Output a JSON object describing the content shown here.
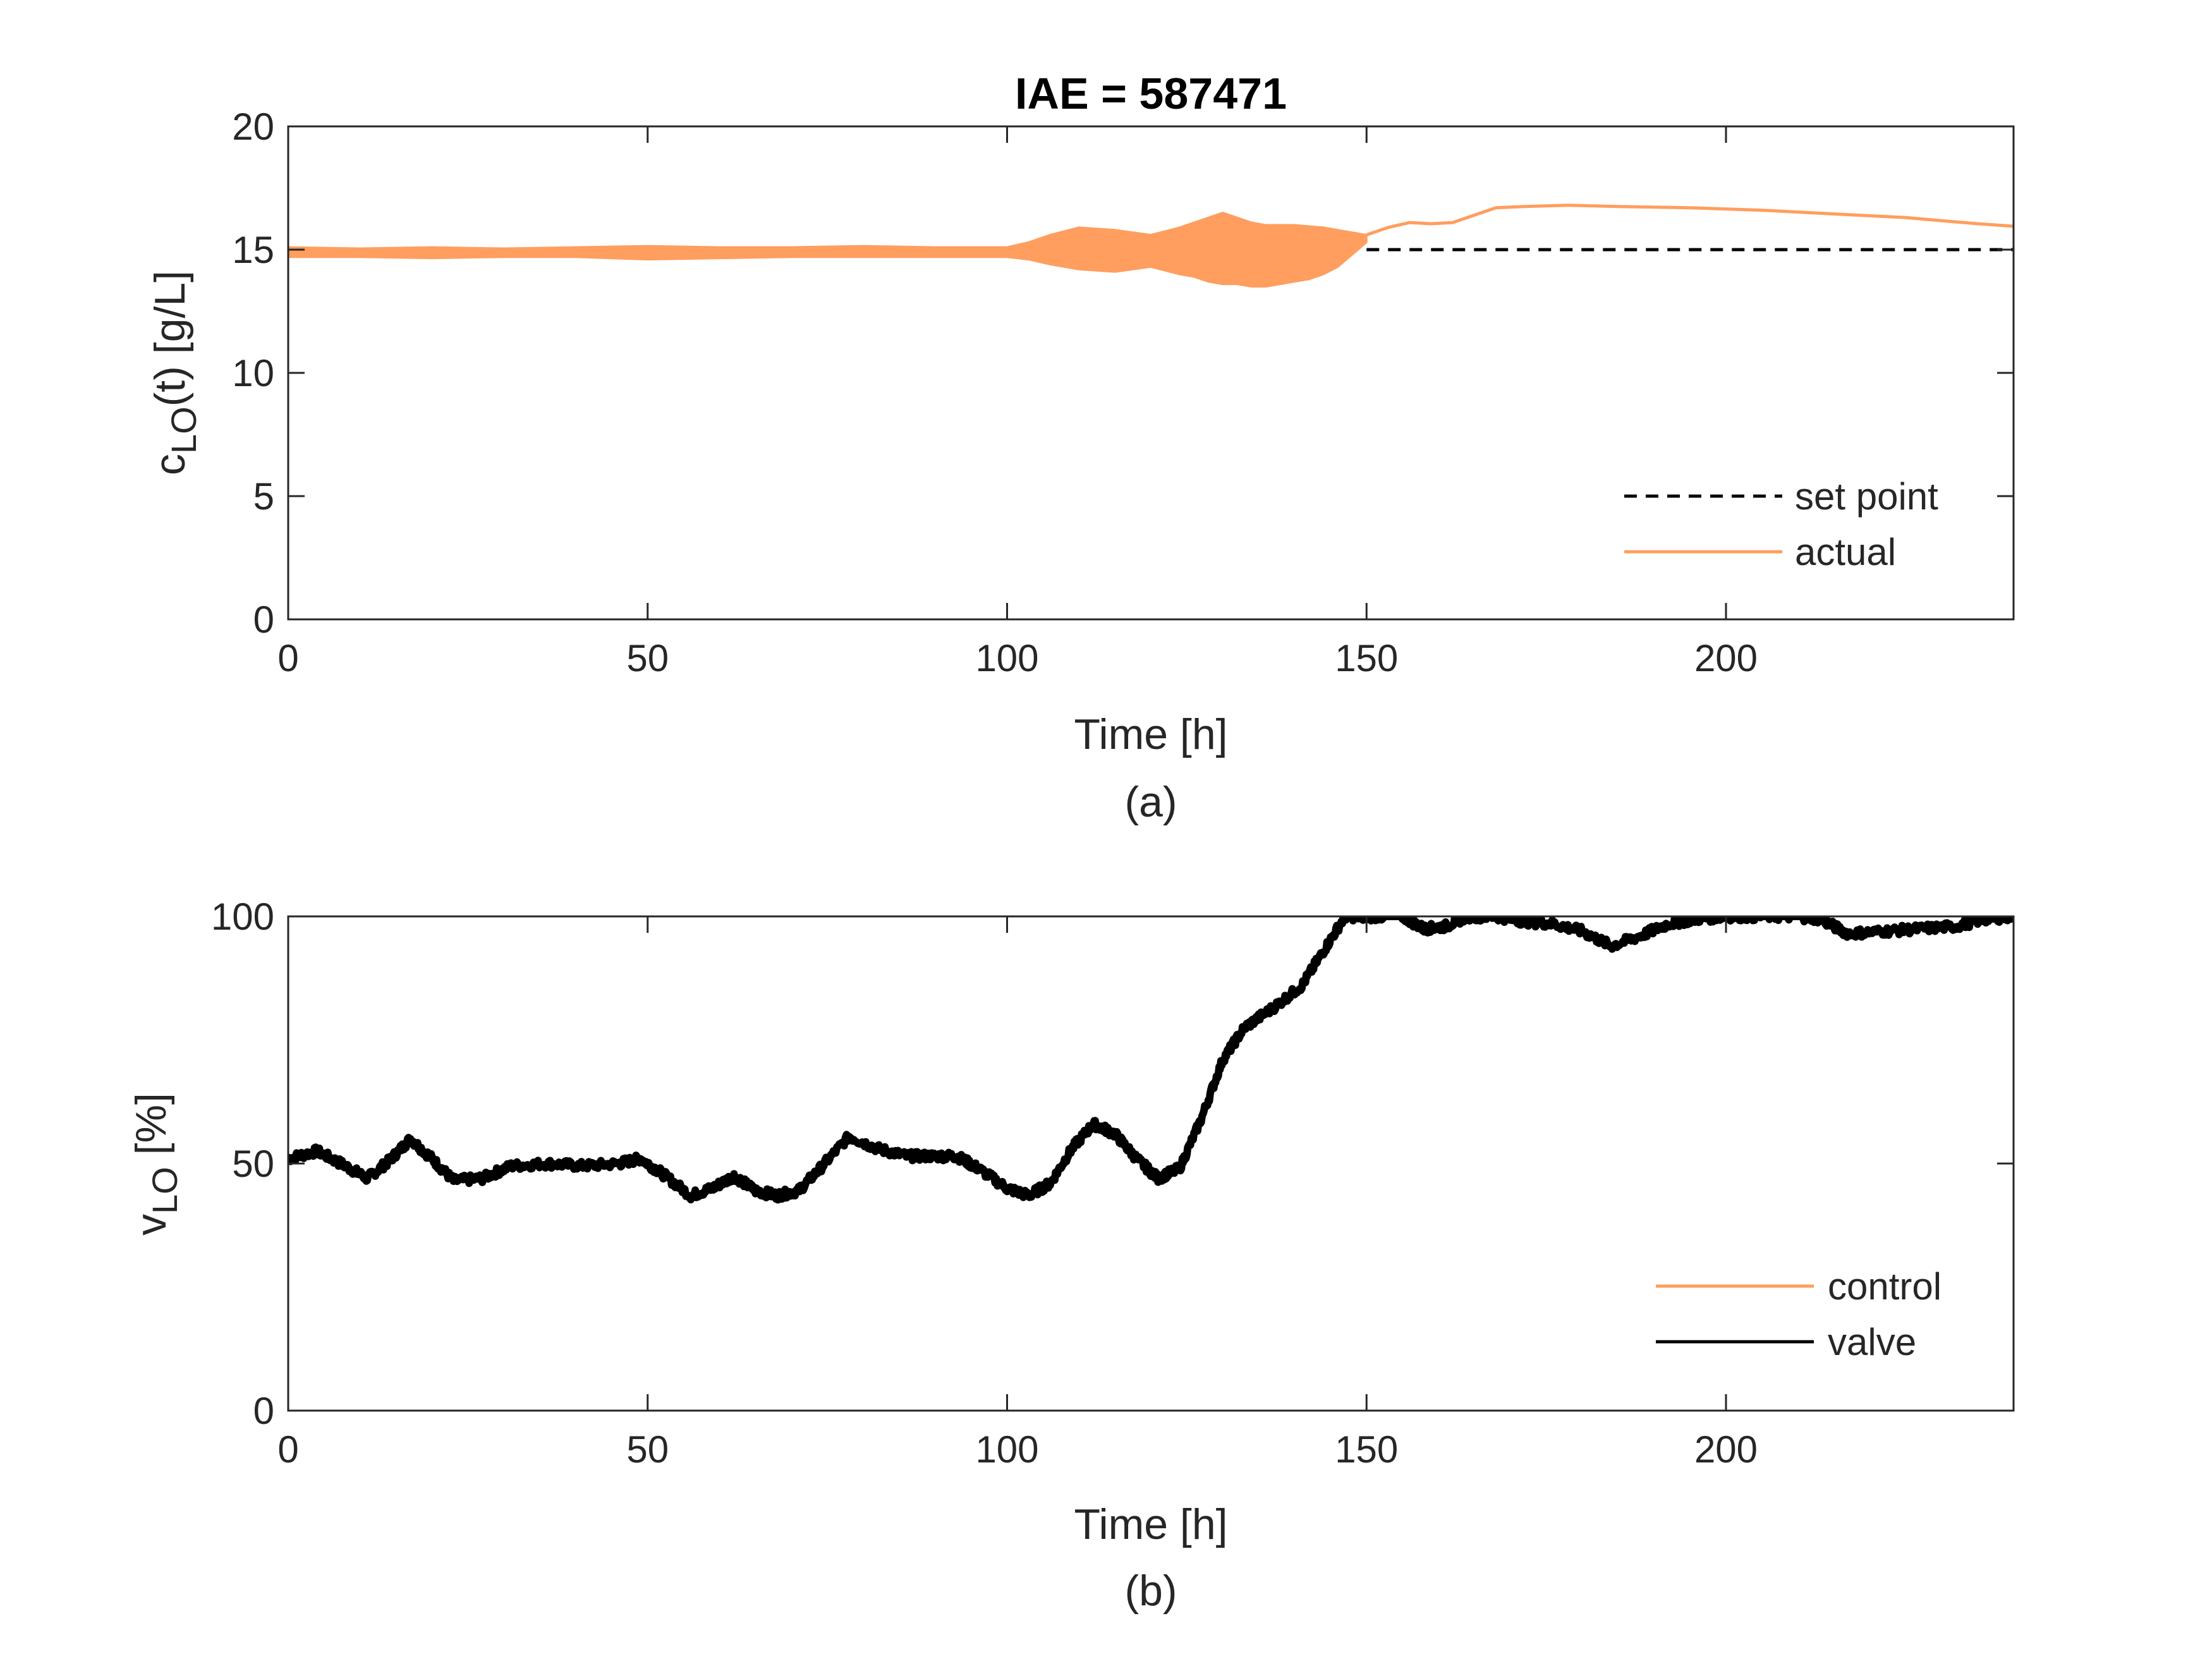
{
  "chart_data": [
    {
      "type": "line",
      "title": "IAE = 587471",
      "xlabel": "Time [h]",
      "ylabel_main": "c",
      "ylabel_sub": "LO",
      "ylabel_rest": "(t) [g/L]",
      "panel_label": "(a)",
      "xlim": [
        0,
        240
      ],
      "ylim": [
        0,
        20
      ],
      "xticks": [
        0,
        50,
        100,
        150,
        200
      ],
      "yticks": [
        0,
        5,
        10,
        15,
        20
      ],
      "legend_position": "bottom-right",
      "series": [
        {
          "name": "set point",
          "color": "#000000",
          "style": "dashed",
          "x": [
            150,
            240
          ],
          "y": [
            15,
            15
          ]
        },
        {
          "name": "actual",
          "color": "#FF9E5E",
          "style": "solid",
          "band_x": [
            0,
            10,
            20,
            30,
            40,
            50,
            60,
            70,
            80,
            90,
            100,
            103,
            106,
            110,
            115,
            120,
            124,
            126,
            128,
            130,
            132,
            134,
            136,
            138,
            140,
            142,
            144,
            146,
            148,
            150
          ],
          "band_low": [
            14.7,
            14.7,
            14.65,
            14.7,
            14.7,
            14.6,
            14.65,
            14.7,
            14.7,
            14.7,
            14.7,
            14.6,
            14.4,
            14.2,
            14.1,
            14.3,
            14.0,
            13.9,
            13.7,
            13.6,
            13.6,
            13.5,
            13.5,
            13.6,
            13.7,
            13.8,
            14.0,
            14.3,
            14.8,
            15.3
          ],
          "band_high": [
            15.1,
            15.05,
            15.1,
            15.05,
            15.1,
            15.15,
            15.1,
            15.1,
            15.15,
            15.1,
            15.1,
            15.3,
            15.6,
            15.9,
            15.8,
            15.6,
            15.9,
            16.1,
            16.3,
            16.5,
            16.3,
            16.1,
            16.0,
            16.0,
            16.0,
            15.95,
            15.9,
            15.8,
            15.7,
            15.6
          ],
          "x": [
            150,
            153,
            156,
            159,
            162,
            165,
            168,
            172,
            178,
            185,
            195,
            205,
            215,
            225,
            235,
            240
          ],
          "y": [
            15.6,
            15.9,
            16.1,
            16.05,
            16.1,
            16.4,
            16.7,
            16.75,
            16.8,
            16.75,
            16.7,
            16.6,
            16.45,
            16.3,
            16.05,
            15.95
          ]
        }
      ]
    },
    {
      "type": "line",
      "xlabel": "Time [h]",
      "ylabel_main": "v",
      "ylabel_sub": "LO",
      "ylabel_rest": " [%]",
      "panel_label": "(b)",
      "xlim": [
        0,
        240
      ],
      "ylim": [
        0,
        100
      ],
      "xticks": [
        0,
        50,
        100,
        150,
        200
      ],
      "yticks": [
        0,
        50,
        100
      ],
      "legend_position": "bottom-right",
      "series": [
        {
          "name": "control",
          "color": "#FF9E5E",
          "style": "solid",
          "x": [],
          "y": []
        },
        {
          "name": "valve",
          "color": "#000000",
          "style": "solid",
          "x": [
            0,
            4,
            8,
            11,
            14,
            17,
            20,
            23,
            27,
            31,
            36,
            41,
            46,
            49,
            52,
            56,
            59,
            62,
            65,
            68,
            71,
            74,
            78,
            82,
            86,
            90,
            93,
            96,
            100,
            103,
            106,
            109,
            112,
            115,
            118,
            121,
            124,
            127,
            130,
            133,
            137,
            141,
            144,
            147,
            150,
            155,
            158,
            161,
            164,
            168,
            172,
            176,
            180,
            184,
            188,
            192,
            196,
            200,
            205,
            210,
            213,
            217,
            222,
            227,
            232,
            236,
            240
          ],
          "y": [
            51,
            52.5,
            49.5,
            47,
            50.5,
            55,
            51,
            46.5,
            47,
            49.5,
            50,
            49.5,
            50,
            51,
            48,
            43.5,
            45,
            47.5,
            44.5,
            43.5,
            44.5,
            49,
            55.5,
            53,
            51.5,
            51.5,
            51.5,
            49,
            45,
            43.5,
            46,
            53,
            58,
            56,
            51,
            47,
            49,
            59,
            71,
            77.5,
            81.5,
            86,
            93,
            100,
            100,
            100,
            97.5,
            98,
            100,
            100,
            99,
            98.5,
            97,
            94,
            96,
            98.5,
            99.5,
            100,
            100,
            100,
            99.5,
            96.5,
            97,
            97.5,
            98,
            99.5,
            100
          ]
        }
      ]
    }
  ]
}
